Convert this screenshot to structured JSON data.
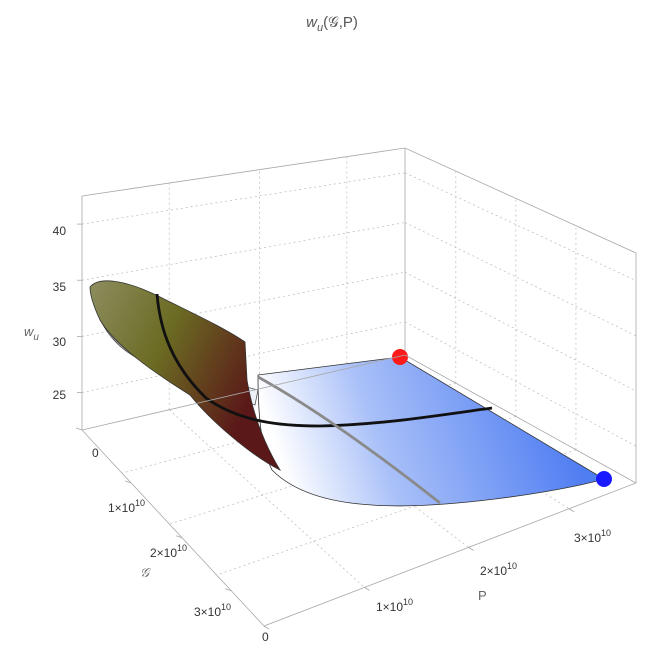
{
  "chart_data": {
    "type": "surface3d",
    "title": "w_u(𝒢,P)",
    "title_parts": {
      "main": "w",
      "sub": "u",
      "args": "(𝒢,P)"
    },
    "zlabel": {
      "main": "w",
      "sub": "u"
    },
    "xlabel": "𝒢",
    "ylabel": "P",
    "z_ticks": [
      "25",
      "30",
      "35",
      "40"
    ],
    "z_range": [
      21,
      42
    ],
    "g_ticks": [
      {
        "base": "0",
        "exp": ""
      },
      {
        "base": "1×10",
        "exp": "10"
      },
      {
        "base": "2×10",
        "exp": "10"
      },
      {
        "base": "3×10",
        "exp": "10"
      }
    ],
    "p_ticks": [
      {
        "base": "0",
        "exp": ""
      },
      {
        "base": "1×10",
        "exp": "10"
      },
      {
        "base": "2×10",
        "exp": "10"
      },
      {
        "base": "3×10",
        "exp": "10"
      }
    ],
    "points": [
      {
        "name": "red-point",
        "color": "#ff1a1a"
      },
      {
        "name": "blue-point",
        "color": "#1a1aff"
      }
    ],
    "curves": [
      {
        "name": "black-curve",
        "color": "#111111"
      },
      {
        "name": "gray-curve",
        "color": "#8a8a8a"
      }
    ],
    "surface_colors": {
      "blue": "#4f7df2",
      "blue_light": "#ffffff",
      "olive": "#6b6b23",
      "maroon": "#5a1818"
    },
    "grid": true
  }
}
